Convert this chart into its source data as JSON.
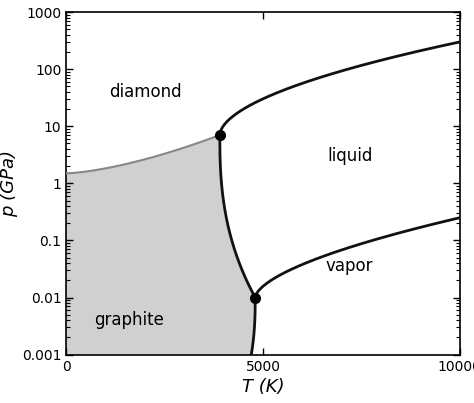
{
  "xlabel": "T (K)",
  "ylabel": "p (GPa)",
  "xlim": [
    0,
    10000
  ],
  "ylim": [
    0.001,
    1000
  ],
  "upper_triple_T": 3900,
  "upper_triple_P": 7.0,
  "lower_triple_T": 4800,
  "lower_triple_P": 0.01,
  "gray_start_P": 1.5,
  "gray_line_color": "#888888",
  "shade_color": "#d0d0d0",
  "line_color": "#111111",
  "label_diamond": "diamond",
  "label_graphite": "graphite",
  "label_liquid": "liquid",
  "label_vapor": "vapor",
  "font_size": 12
}
